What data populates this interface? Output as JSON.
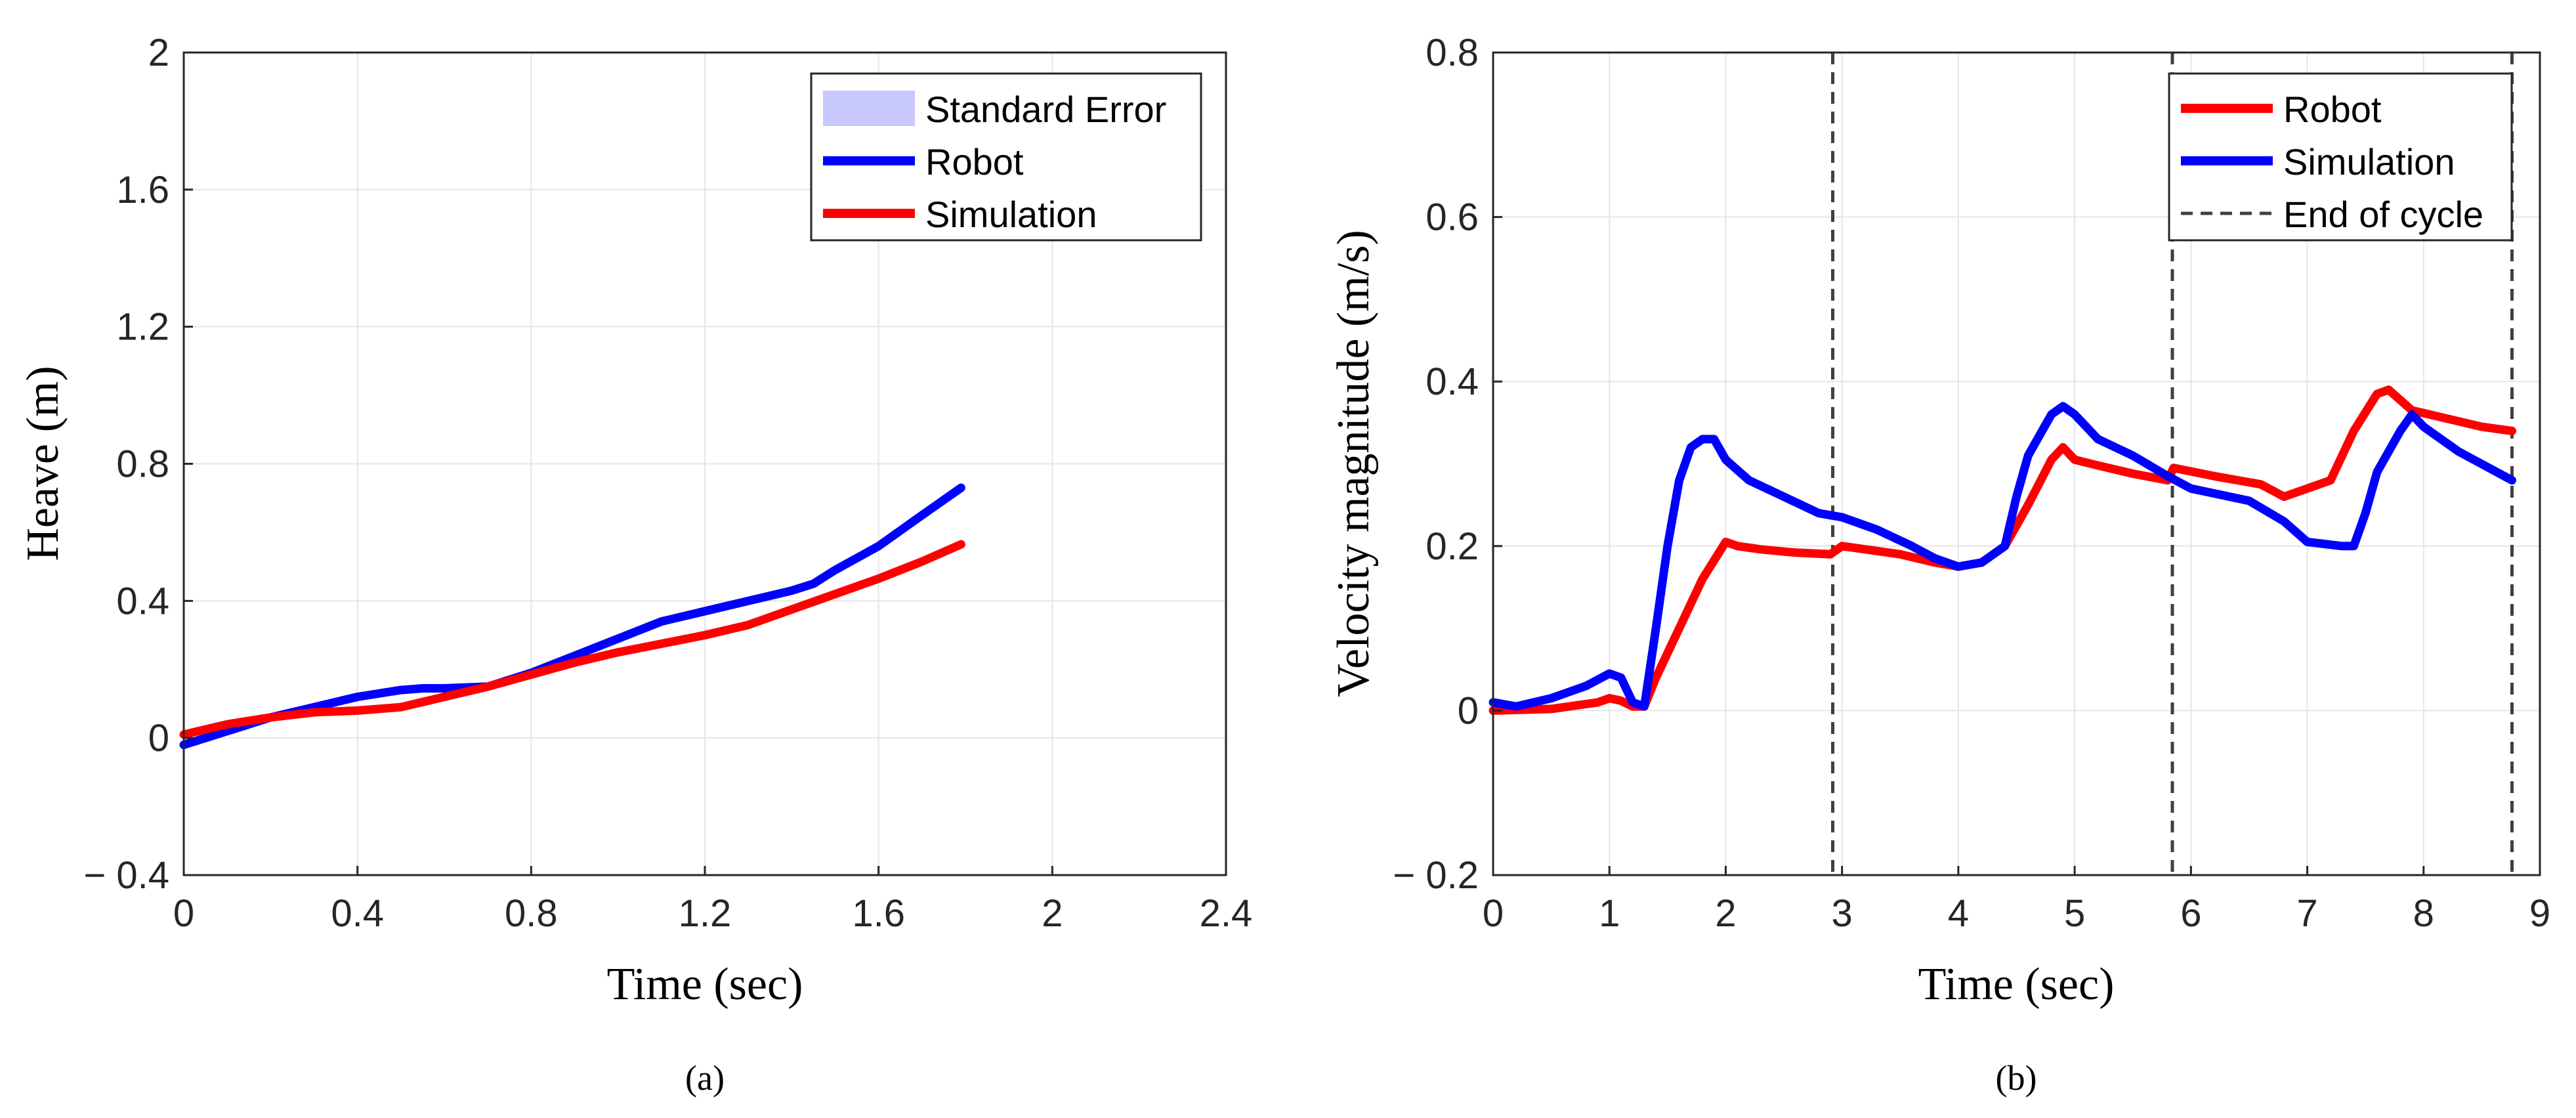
{
  "colors": {
    "robot": "#ff0000",
    "simulation": "#0000ff",
    "std_error_fill": "#c8c8ff",
    "cycle_line": "#404040",
    "grid": "#e6e6e6",
    "axis": "#262626"
  },
  "chart_data": [
    {
      "type": "line",
      "caption": "(a)",
      "xlabel": "Time (sec)",
      "ylabel": "Heave (m)",
      "xlim": [
        0,
        2.4
      ],
      "ylim": [
        -0.4,
        2
      ],
      "xticks": [
        0,
        0.4,
        0.8,
        1.2,
        1.6,
        2,
        2.4
      ],
      "xtick_labels": [
        "0",
        "0.4",
        "0.8",
        "1.2",
        "1.6",
        "2",
        "2.4"
      ],
      "yticks": [
        -0.4,
        0,
        0.4,
        0.8,
        1.2,
        1.6,
        2
      ],
      "ytick_labels": [
        "− 0.4",
        "0",
        "0.4",
        "0.8",
        "1.2",
        "1.6",
        "2"
      ],
      "grid": true,
      "legend_position": "top-right",
      "legend": [
        {
          "label": "Standard Error",
          "kind": "patch",
          "color": "#c8c8ff"
        },
        {
          "label": "Robot",
          "kind": "line",
          "color": "#0000ff"
        },
        {
          "label": "Simulation",
          "kind": "line",
          "color": "#ff0000"
        }
      ],
      "series": [
        {
          "name": "Robot",
          "color": "#0000ff",
          "x": [
            0,
            0.1,
            0.2,
            0.3,
            0.4,
            0.5,
            0.55,
            0.6,
            0.7,
            0.8,
            0.9,
            1.0,
            1.1,
            1.2,
            1.3,
            1.4,
            1.45,
            1.5,
            1.6,
            1.7,
            1.79
          ],
          "y": [
            -0.02,
            0.02,
            0.06,
            0.09,
            0.12,
            0.14,
            0.145,
            0.145,
            0.15,
            0.19,
            0.24,
            0.29,
            0.34,
            0.37,
            0.4,
            0.43,
            0.45,
            0.49,
            0.56,
            0.65,
            0.73
          ]
        },
        {
          "name": "Simulation",
          "color": "#ff0000",
          "x": [
            0,
            0.1,
            0.2,
            0.3,
            0.4,
            0.5,
            0.6,
            0.7,
            0.8,
            0.9,
            1.0,
            1.1,
            1.2,
            1.3,
            1.4,
            1.5,
            1.6,
            1.7,
            1.79
          ],
          "y": [
            0.01,
            0.04,
            0.06,
            0.075,
            0.08,
            0.09,
            0.12,
            0.15,
            0.185,
            0.22,
            0.25,
            0.275,
            0.3,
            0.33,
            0.375,
            0.42,
            0.465,
            0.515,
            0.565
          ]
        }
      ]
    },
    {
      "type": "line",
      "caption": "(b)",
      "xlabel": "Time (sec)",
      "ylabel": "Velocity magnitude (m/s)",
      "xlim": [
        0,
        9
      ],
      "ylim": [
        -0.2,
        0.8
      ],
      "xticks": [
        0,
        1,
        2,
        3,
        4,
        5,
        6,
        7,
        8,
        9
      ],
      "xtick_labels": [
        "0",
        "1",
        "2",
        "3",
        "4",
        "5",
        "6",
        "7",
        "8",
        "9"
      ],
      "yticks": [
        -0.2,
        0,
        0.2,
        0.4,
        0.6,
        0.8
      ],
      "ytick_labels": [
        "− 0.2",
        "0",
        "0.2",
        "0.4",
        "0.6",
        "0.8"
      ],
      "grid": true,
      "legend_position": "top-right",
      "legend": [
        {
          "label": "Robot",
          "kind": "line",
          "color": "#ff0000"
        },
        {
          "label": "Simulation",
          "kind": "line",
          "color": "#0000ff"
        },
        {
          "label": "End of cycle",
          "kind": "dashed",
          "color": "#404040"
        }
      ],
      "cycle_ends": [
        2.92,
        5.84,
        8.76
      ],
      "series": [
        {
          "name": "Robot",
          "color": "#ff0000",
          "x": [
            0,
            0.5,
            0.9,
            1.0,
            1.1,
            1.2,
            1.3,
            1.4,
            1.6,
            1.8,
            2.0,
            2.1,
            2.3,
            2.6,
            2.9,
            3.0,
            3.5,
            3.8,
            4.0,
            4.2,
            4.4,
            4.6,
            4.8,
            4.9,
            5.0,
            5.2,
            5.5,
            5.8,
            5.85,
            6.2,
            6.6,
            6.8,
            7.0,
            7.2,
            7.4,
            7.6,
            7.7,
            7.9,
            8.2,
            8.5,
            8.76
          ],
          "y": [
            0,
            0.002,
            0.01,
            0.015,
            0.012,
            0.005,
            0.005,
            0.04,
            0.1,
            0.16,
            0.205,
            0.2,
            0.196,
            0.192,
            0.19,
            0.2,
            0.19,
            0.18,
            0.175,
            0.18,
            0.2,
            0.25,
            0.305,
            0.32,
            0.305,
            0.298,
            0.288,
            0.28,
            0.295,
            0.285,
            0.275,
            0.26,
            0.27,
            0.28,
            0.34,
            0.385,
            0.39,
            0.365,
            0.355,
            0.345,
            0.34
          ]
        },
        {
          "name": "Simulation",
          "color": "#0000ff",
          "x": [
            0,
            0.2,
            0.5,
            0.8,
            1.0,
            1.1,
            1.2,
            1.3,
            1.4,
            1.5,
            1.6,
            1.7,
            1.8,
            1.9,
            2.0,
            2.2,
            2.5,
            2.8,
            3.0,
            3.3,
            3.6,
            3.8,
            4.0,
            4.2,
            4.4,
            4.5,
            4.6,
            4.8,
            4.9,
            5.0,
            5.2,
            5.5,
            5.8,
            6.0,
            6.5,
            6.8,
            7.0,
            7.3,
            7.4,
            7.5,
            7.6,
            7.8,
            7.9,
            8.0,
            8.3,
            8.76
          ],
          "y": [
            0.01,
            0.005,
            0.015,
            0.03,
            0.045,
            0.04,
            0.01,
            0.005,
            0.1,
            0.2,
            0.28,
            0.32,
            0.33,
            0.33,
            0.305,
            0.28,
            0.26,
            0.24,
            0.235,
            0.22,
            0.2,
            0.185,
            0.175,
            0.18,
            0.2,
            0.26,
            0.31,
            0.36,
            0.37,
            0.36,
            0.33,
            0.31,
            0.285,
            0.27,
            0.255,
            0.23,
            0.205,
            0.2,
            0.2,
            0.24,
            0.29,
            0.34,
            0.36,
            0.345,
            0.315,
            0.28
          ]
        }
      ]
    }
  ]
}
